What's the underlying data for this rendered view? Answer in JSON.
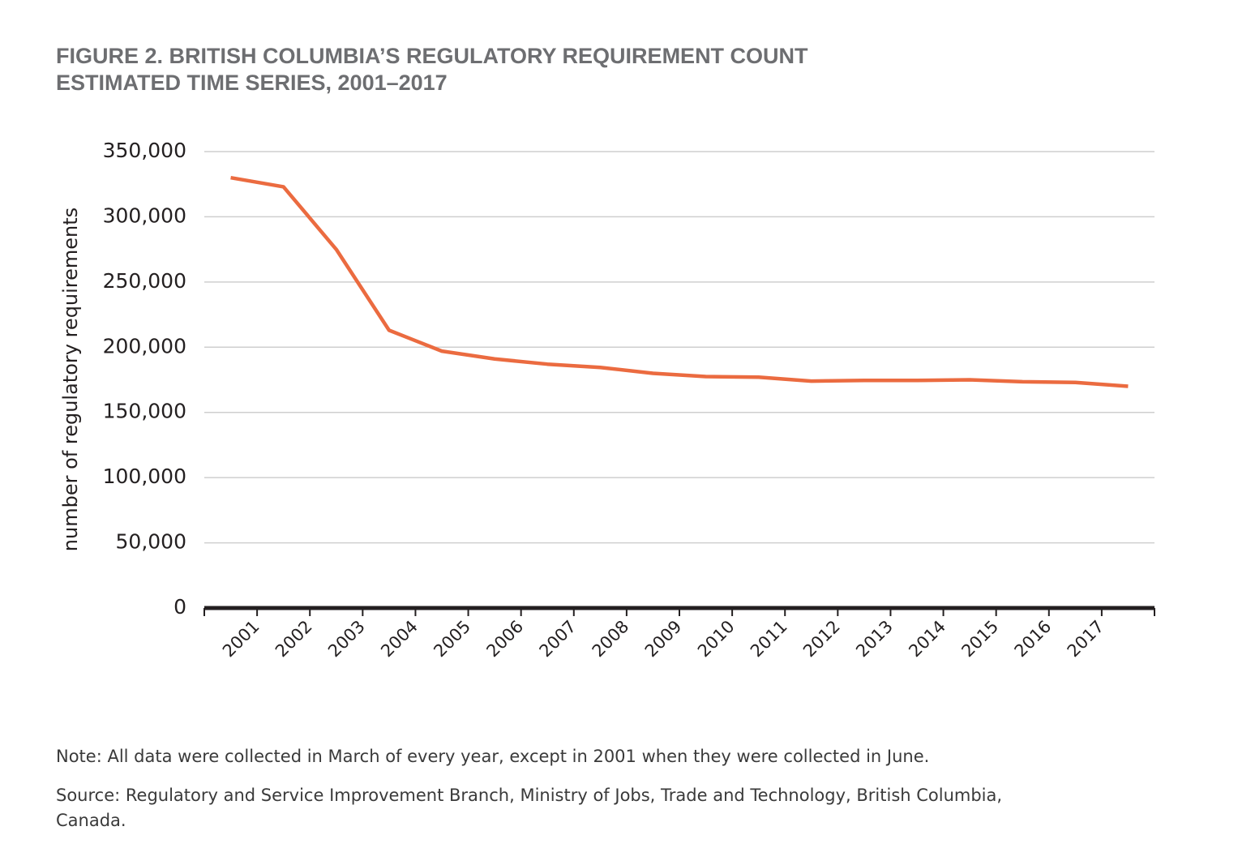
{
  "chart_data": {
    "type": "line",
    "title": [
      "FIGURE 2. BRITISH COLUMBIA’S REGULATORY REQUIREMENT COUNT",
      "ESTIMATED TIME SERIES, 2001–2017"
    ],
    "y_label": "number of regulatory requirements",
    "categories": [
      "2001",
      "2002",
      "2003",
      "2004",
      "2005",
      "2006",
      "2007",
      "2008",
      "2009",
      "2010",
      "2011",
      "2012",
      "2013",
      "2014",
      "2015",
      "2016",
      "2017",
      null
    ],
    "series": [
      {
        "name": "regulatory requirements",
        "color": "#eb6b40",
        "values": [
          330000,
          323000,
          275000,
          213000,
          197000,
          191000,
          187000,
          184500,
          180000,
          177500,
          177000,
          174000,
          174500,
          174500,
          175000,
          173500,
          173000,
          170000
        ]
      }
    ],
    "ylim": [
      0,
      350000
    ],
    "yticks": [
      0,
      {
        "value": 50000,
        "label": "50,000"
      },
      {
        "value": 100000,
        "label": "100,000"
      },
      {
        "value": 150000,
        "label": "150,000"
      },
      {
        "value": 200000,
        "label": "200,000"
      },
      {
        "value": 250000,
        "label": "250,000"
      },
      {
        "value": 300000,
        "label": "300,000"
      },
      {
        "value": 350000,
        "label": "350,000"
      }
    ],
    "grid": true,
    "notes": [
      "Note: All data were collected in March of every year, except in 2001 when they were collected in June.",
      "Source: Regulatory and Service Improvement Branch, Ministry of Jobs, Trade and Technology, British Columbia,",
      "Canada."
    ]
  }
}
